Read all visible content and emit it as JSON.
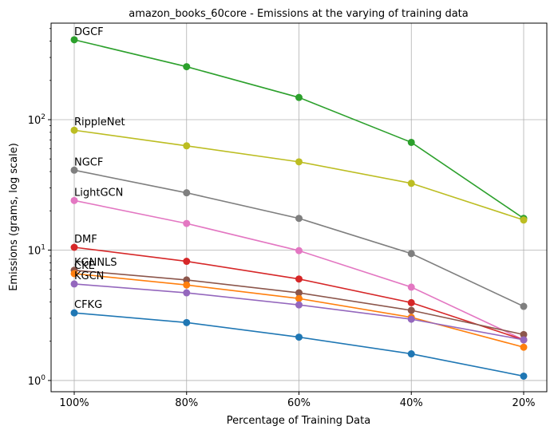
{
  "chart_data": {
    "type": "line",
    "title": "amazon_books_60core - Emissions at the varying of training data",
    "xlabel": "Percentage of Training Data",
    "ylabel": "Emissions (grams, log scale)",
    "y_scale": "log",
    "ylim": [
      0.82,
      550
    ],
    "grid": true,
    "categories": [
      "100%",
      "80%",
      "60%",
      "40%",
      "20%"
    ],
    "y_ticks": [
      {
        "value": 1,
        "base": "10",
        "exp": "0"
      },
      {
        "value": 10,
        "base": "10",
        "exp": "1"
      },
      {
        "value": 100,
        "base": "10",
        "exp": "2"
      }
    ],
    "series": [
      {
        "name": "DGCF",
        "color": "#2ca02c",
        "values": [
          410,
          255,
          148,
          67,
          17.5
        ]
      },
      {
        "name": "RippleNet",
        "color": "#bcbd22",
        "values": [
          83,
          63,
          47.5,
          32.5,
          17
        ]
      },
      {
        "name": "NGCF",
        "color": "#7f7f7f",
        "values": [
          41,
          27.5,
          17.5,
          9.4,
          3.7
        ]
      },
      {
        "name": "LightGCN",
        "color": "#e377c2",
        "values": [
          24,
          16,
          9.9,
          5.2,
          2.05
        ]
      },
      {
        "name": "DMF",
        "color": "#d62728",
        "values": [
          10.5,
          8.2,
          6.0,
          3.95,
          2.05
        ]
      },
      {
        "name": "KGNNLS",
        "color": "#8c564b",
        "values": [
          7.0,
          5.9,
          4.7,
          3.45,
          2.25
        ]
      },
      {
        "name": "CKE",
        "color": "#ff7f0e",
        "values": [
          6.6,
          5.4,
          4.25,
          3.05,
          1.8
        ]
      },
      {
        "name": "KGCN",
        "color": "#9467bd",
        "values": [
          5.5,
          4.7,
          3.8,
          2.95,
          2.05
        ]
      },
      {
        "name": "CFKG",
        "color": "#1f77b4",
        "values": [
          3.3,
          2.78,
          2.15,
          1.6,
          1.08
        ]
      }
    ]
  }
}
